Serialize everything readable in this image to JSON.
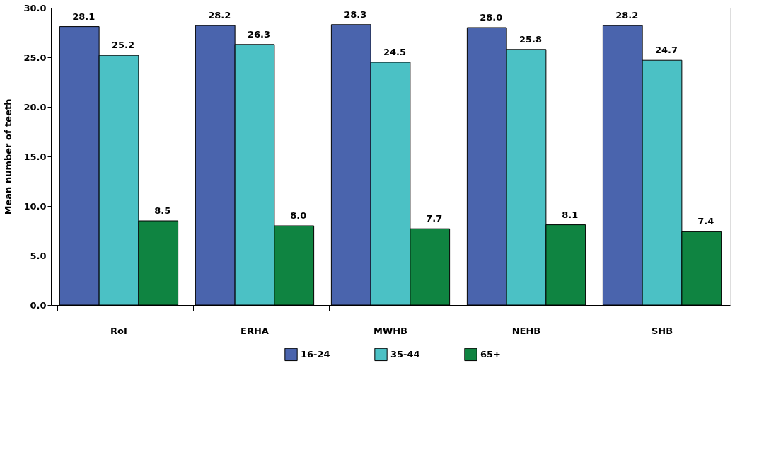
{
  "chart_data": {
    "type": "bar",
    "ylabel": "Mean number of teeth",
    "categories": [
      "RoI",
      "ERHA",
      "MWHB",
      "NEHB",
      "SHB"
    ],
    "series": [
      {
        "name": "16-24",
        "color": "#4a64ad",
        "values": [
          28.1,
          28.2,
          28.3,
          28.0,
          28.2
        ],
        "value_labels": [
          "28.1",
          "28.2",
          "28.3",
          "28.0",
          "28.2"
        ]
      },
      {
        "name": "35-44",
        "color": "#4bc1c5",
        "values": [
          25.2,
          26.3,
          24.5,
          25.8,
          24.7
        ],
        "value_labels": [
          "25.2",
          "26.3",
          "24.5",
          "25.8",
          "24.7"
        ]
      },
      {
        "name": "65+",
        "color": "#0f8441",
        "values": [
          8.5,
          8.0,
          7.7,
          8.1,
          7.4
        ],
        "value_labels": [
          "8.5",
          "8.0",
          "7.7",
          "8.1",
          "7.4"
        ]
      }
    ],
    "ylim": [
      0,
      30
    ],
    "yticks": [
      {
        "value": 0,
        "label": "0.0"
      },
      {
        "value": 5,
        "label": "5.0"
      },
      {
        "value": 10,
        "label": "10.0"
      },
      {
        "value": 15,
        "label": "15.0"
      },
      {
        "value": 20,
        "label": "20.0"
      },
      {
        "value": 25,
        "label": "25.0"
      },
      {
        "value": 30,
        "label": "30.0"
      }
    ],
    "grid": false,
    "legend": "bottom"
  }
}
